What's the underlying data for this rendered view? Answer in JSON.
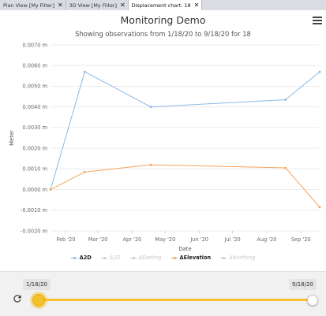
{
  "tabs": [
    {
      "label": "Plan View [My Filter]",
      "active": false
    },
    {
      "label": "3D View [My Filter]",
      "active": false
    },
    {
      "label": "Displacement chart: 18",
      "active": true
    }
  ],
  "tab_close_glyph": "✕",
  "header": {
    "title": "Monitoring Demo",
    "subtitle": "Showing observations from 1/18/20 to 9/18/20 for 18",
    "menu_icon": "hamburger-menu-icon"
  },
  "colors": {
    "d2d": "#8ab9e6",
    "elevation": "#f5a35a",
    "inactive": "#c9c9c9",
    "slider": "#f7c22f"
  },
  "chart_data": {
    "type": "line",
    "ylabel": "Meter",
    "xlabel": "Date",
    "ylim": [
      -0.002,
      0.007
    ],
    "yticks": [
      "0.0070 m",
      "0.0060 m",
      "0.0050 m",
      "0.0040 m",
      "0.0030 m",
      "0.0020 m",
      "0.0010 m",
      "0.0000 m",
      "-0.0010 m",
      "-0.0020 m"
    ],
    "ytick_values": [
      0.007,
      0.006,
      0.005,
      0.004,
      0.003,
      0.002,
      0.001,
      0,
      -0.001,
      -0.002
    ],
    "xlim": [
      "2020-01-18",
      "2020-09-18"
    ],
    "xticks": [
      {
        "label": "Feb '20",
        "date": "2020-02-01"
      },
      {
        "label": "Mar '20",
        "date": "2020-03-01"
      },
      {
        "label": "Apr '20",
        "date": "2020-04-01"
      },
      {
        "label": "May '20",
        "date": "2020-05-01"
      },
      {
        "label": "Jun '20",
        "date": "2020-06-01"
      },
      {
        "label": "Jul '20",
        "date": "2020-07-01"
      },
      {
        "label": "Aug '20",
        "date": "2020-08-01"
      },
      {
        "label": "Sep '20",
        "date": "2020-09-01"
      }
    ],
    "grid": true,
    "legend_position": "bottom-center",
    "series": [
      {
        "name": "Δ2D",
        "visible": true,
        "color": "#8ab9e6",
        "points": [
          {
            "x": "2020-01-18",
            "y": 0.0
          },
          {
            "x": "2020-02-18",
            "y": 0.0057
          },
          {
            "x": "2020-04-18",
            "y": 0.004
          },
          {
            "x": "2020-08-18",
            "y": 0.00435
          },
          {
            "x": "2020-09-18",
            "y": 0.0057
          }
        ]
      },
      {
        "name": "Δ3D",
        "visible": false,
        "color": "#c9c9c9",
        "points": []
      },
      {
        "name": "ΔEasting",
        "visible": false,
        "color": "#c9c9c9",
        "points": []
      },
      {
        "name": "ΔElevation",
        "visible": true,
        "color": "#f5a35a",
        "points": [
          {
            "x": "2020-01-18",
            "y": 0.0
          },
          {
            "x": "2020-02-18",
            "y": 0.00085
          },
          {
            "x": "2020-04-18",
            "y": 0.0012
          },
          {
            "x": "2020-08-18",
            "y": 0.00105
          },
          {
            "x": "2020-09-18",
            "y": -0.00085
          }
        ]
      },
      {
        "name": "ΔNorthing",
        "visible": false,
        "color": "#c9c9c9",
        "points": []
      }
    ]
  },
  "slider": {
    "start_label": "1/18/20",
    "end_label": "9/18/20",
    "refresh_icon": "refresh-icon",
    "range": [
      0,
      1
    ]
  }
}
